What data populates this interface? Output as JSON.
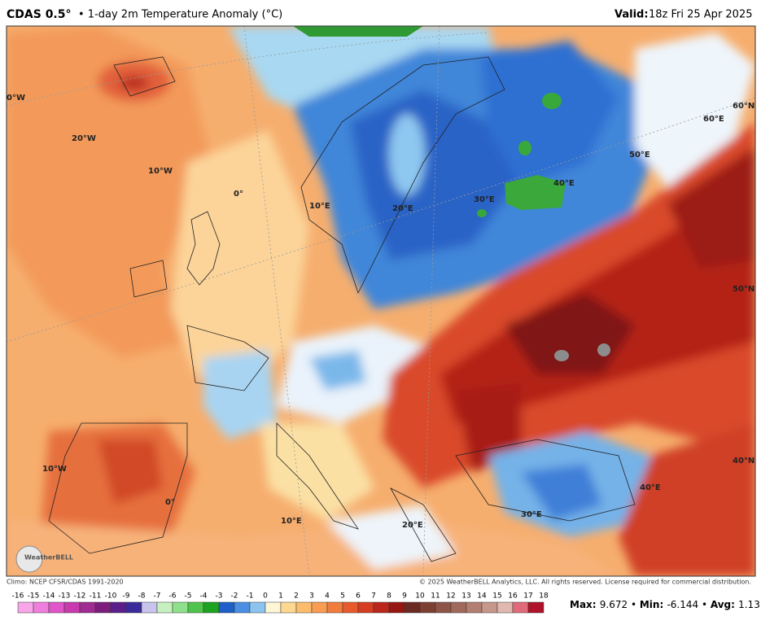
{
  "header": {
    "model": "CDAS 0.5°",
    "title": "• 1-day 2m Temperature Anomaly (°C)",
    "valid_label": "Valid:",
    "valid_time": "18z Fri 25 Apr 2025"
  },
  "map_labels": [
    "0°W",
    "20°W",
    "10°W",
    "0°",
    "10°E",
    "20°E",
    "30°E",
    "40°E",
    "50°E",
    "60°E",
    "60°N",
    "50°N",
    "40°N",
    "40°E",
    "30°E",
    "20°E",
    "10°E",
    "10°W",
    "0°"
  ],
  "logo": "WeatherBELL",
  "footer": {
    "climo": "Climo: NCEP CFSR/CDAS 1991-2020",
    "copyright": "© 2025 WeatherBELL Analytics, LLC. All rights reserved. License required for commercial distribution."
  },
  "colorbar": {
    "ticks": [
      -16,
      -15,
      -14,
      -13,
      -12,
      -11,
      -10,
      -9,
      -8,
      -7,
      -6,
      -5,
      -4,
      -3,
      -2,
      -1,
      0,
      1,
      2,
      3,
      4,
      5,
      6,
      7,
      8,
      9,
      10,
      11,
      12,
      13,
      14,
      15,
      16,
      17,
      18
    ],
    "colors": [
      "#f7a6e8",
      "#ee7fdc",
      "#e055c8",
      "#c83aae",
      "#a02b93",
      "#7c1d7d",
      "#5a1f8a",
      "#3b2a9a",
      "#c8c4ec",
      "#c6f0c0",
      "#8ee08a",
      "#4fc44c",
      "#1ea31e",
      "#1f5fc8",
      "#4a8fe2",
      "#8cc4f0",
      "#fff6d6",
      "#fdd891",
      "#fbbd6c",
      "#f89d52",
      "#f27c3c",
      "#e85a2c",
      "#d63c22",
      "#bb261a",
      "#961611",
      "#6b2a24",
      "#7d3f34",
      "#8e5447",
      "#a0695c",
      "#b37f72",
      "#c6978b",
      "#e0b8b0",
      "#e06a7a",
      "#b0122a"
    ]
  },
  "stats": {
    "max_label": "Max",
    "max": 9.672,
    "min_label": "Min",
    "min": -6.144,
    "avg_label": "Avg",
    "avg": 1.131
  }
}
